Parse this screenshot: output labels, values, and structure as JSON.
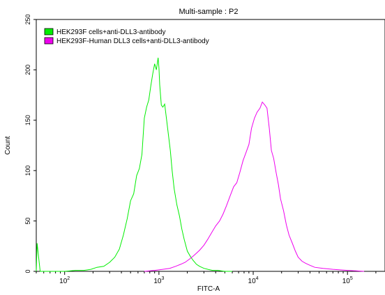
{
  "chart_data": {
    "type": "line",
    "title": "Multi-sample : P2",
    "xlabel": "FITC-A",
    "ylabel": "Count",
    "x_scale": "log",
    "xlim": [
      50,
      250000
    ],
    "ylim": [
      0,
      250
    ],
    "x_ticks": [
      {
        "value": 100,
        "base": "10",
        "exp": "2"
      },
      {
        "value": 1000,
        "base": "10",
        "exp": "3"
      },
      {
        "value": 10000,
        "base": "10",
        "exp": "4"
      },
      {
        "value": 100000,
        "base": "10",
        "exp": "5"
      }
    ],
    "y_ticks": [
      0,
      50,
      100,
      150,
      200,
      250
    ],
    "legend_position": "top-left",
    "grid": false,
    "series": [
      {
        "name": "HEK293F cells+anti-DLL3-antibody",
        "color": "#00ee00",
        "x": [
          50,
          51,
          55,
          60,
          100,
          130,
          160,
          190,
          220,
          260,
          300,
          340,
          380,
          420,
          460,
          500,
          540,
          580,
          620,
          660,
          700,
          740,
          780,
          820,
          860,
          900,
          940,
          980,
          1000,
          1020,
          1060,
          1100,
          1150,
          1200,
          1260,
          1320,
          1380,
          1450,
          1550,
          1650,
          1750,
          1850,
          2000,
          2150,
          2300,
          2500,
          2700,
          3000,
          3300,
          3700,
          4200,
          5000,
          6000
        ],
        "y": [
          0,
          28,
          0,
          0,
          0,
          1,
          1,
          2,
          4,
          5,
          9,
          14,
          22,
          36,
          52,
          70,
          77,
          95,
          102,
          116,
          152,
          163,
          170,
          184,
          196,
          206,
          200,
          212,
          202,
          185,
          165,
          163,
          166,
          152,
          136,
          120,
          100,
          82,
          66,
          55,
          42,
          32,
          20,
          15,
          11,
          7,
          5,
          3,
          2,
          1,
          1,
          0,
          0
        ]
      },
      {
        "name": "HEK293F-Human DLL3 cells+anti-DLL3-antibody",
        "color": "#ee00ee",
        "x": [
          700,
          900,
          1100,
          1300,
          1500,
          1700,
          1900,
          2100,
          2300,
          2500,
          2700,
          3000,
          3300,
          3600,
          4000,
          4400,
          4800,
          5200,
          5700,
          6200,
          6700,
          7200,
          7800,
          8400,
          9000,
          9600,
          10300,
          11000,
          11800,
          12500,
          13300,
          14000,
          14800,
          15600,
          16500,
          17500,
          18500,
          19500,
          21000,
          22500,
          24000,
          26000,
          28000,
          30000,
          33000,
          36000,
          40000,
          45000,
          55000,
          70000,
          100000,
          150000
        ],
        "y": [
          0,
          1,
          2,
          3,
          5,
          7,
          9,
          12,
          15,
          18,
          21,
          26,
          32,
          38,
          45,
          50,
          57,
          65,
          75,
          84,
          88,
          98,
          110,
          118,
          126,
          142,
          152,
          158,
          162,
          168,
          165,
          162,
          142,
          120,
          112,
          98,
          86,
          72,
          60,
          46,
          36,
          28,
          20,
          14,
          10,
          8,
          6,
          4,
          3,
          2,
          1,
          0
        ]
      }
    ]
  }
}
